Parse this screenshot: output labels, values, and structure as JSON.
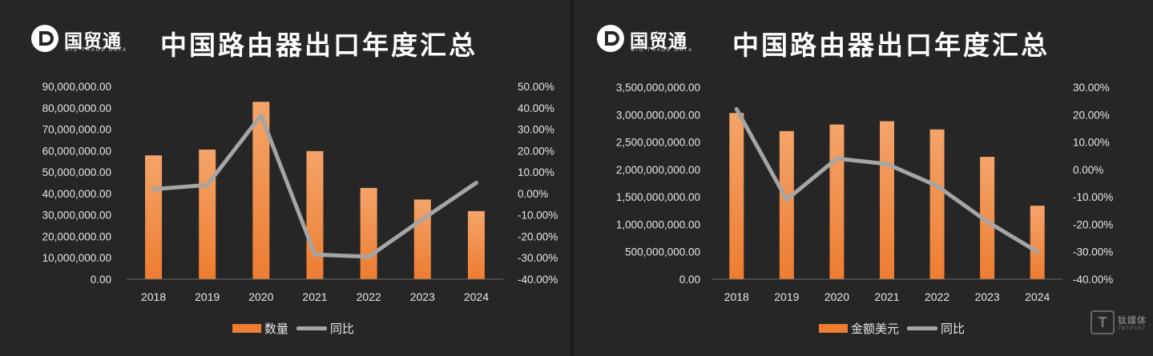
{
  "brand": {
    "name": "国贸通",
    "sub": "BIG TRADE DATA"
  },
  "watermark": {
    "box": "T",
    "cn": "钛媒体",
    "en": "TMTPOST"
  },
  "colors": {
    "bar": "#ed7d31",
    "bar_light": "#f4a46a",
    "line": "#a5a5a5",
    "axis": "#6a6a6a",
    "text": "#e6e6e6"
  },
  "chart_data": [
    {
      "type": "bar",
      "title": "中国路由器出口年度汇总",
      "categories": [
        "2018",
        "2019",
        "2020",
        "2021",
        "2022",
        "2023",
        "2024"
      ],
      "series": [
        {
          "name": "数量",
          "kind": "bar",
          "axis": "left",
          "values": [
            57800000,
            60500000,
            82800000,
            59800000,
            42600000,
            37200000,
            31800000
          ]
        },
        {
          "name": "同比",
          "kind": "line",
          "axis": "right",
          "values": [
            2.0,
            4.0,
            36.5,
            -28.5,
            -29.5,
            -12.0,
            5.0
          ]
        }
      ],
      "y_left": {
        "min": 0,
        "max": 90000000,
        "step": 10000000,
        "ticks": [
          "0.00",
          "10,000,000.00",
          "20,000,000.00",
          "30,000,000.00",
          "40,000,000.00",
          "50,000,000.00",
          "60,000,000.00",
          "70,000,000.00",
          "80,000,000.00",
          "90,000,000.00"
        ]
      },
      "y_right": {
        "min": -40,
        "max": 50,
        "step": 10,
        "ticks": [
          "-40.00%",
          "-30.00%",
          "-20.00%",
          "-10.00%",
          "0.00%",
          "10.00%",
          "20.00%",
          "30.00%",
          "40.00%",
          "50.00%"
        ]
      },
      "legend_placement": "bottom",
      "grid": false
    },
    {
      "type": "bar",
      "title": "中国路由器出口年度汇总",
      "categories": [
        "2018",
        "2019",
        "2020",
        "2021",
        "2022",
        "2023",
        "2024"
      ],
      "series": [
        {
          "name": "金额美元",
          "kind": "bar",
          "axis": "left",
          "values": [
            3030000000,
            2700000000,
            2820000000,
            2880000000,
            2730000000,
            2230000000,
            1340000000
          ]
        },
        {
          "name": "同比",
          "kind": "line",
          "axis": "right",
          "values": [
            22.0,
            -11.0,
            4.0,
            2.0,
            -6.0,
            -19.0,
            -30.0
          ]
        }
      ],
      "y_left": {
        "min": 0,
        "max": 3500000000,
        "step": 500000000,
        "ticks": [
          "0.00",
          "500,000,000.00",
          "1,000,000,000.00",
          "1,500,000,000.00",
          "2,000,000,000.00",
          "2,500,000,000.00",
          "3,000,000,000.00",
          "3,500,000,000.00"
        ]
      },
      "y_right": {
        "min": -40,
        "max": 30,
        "step": 10,
        "ticks": [
          "-40.00%",
          "-30.00%",
          "-20.00%",
          "-10.00%",
          "0.00%",
          "10.00%",
          "20.00%",
          "30.00%"
        ]
      },
      "legend_placement": "bottom",
      "grid": false
    }
  ]
}
